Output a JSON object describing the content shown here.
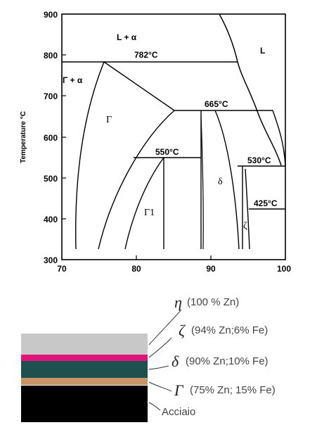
{
  "chart_data": {
    "type": "phase-diagram",
    "ylabel": "Temperature °C",
    "xlim": [
      70,
      100
    ],
    "ylim": [
      300,
      900
    ],
    "x_ticks": [
      "70",
      "80",
      "90",
      "100"
    ],
    "y_ticks": [
      "300",
      "400",
      "500",
      "600",
      "700",
      "800",
      "900"
    ],
    "regions": [
      {
        "id": "l-alpha",
        "label": "L + α"
      },
      {
        "id": "liquid",
        "label": "L"
      },
      {
        "id": "gamma-alpha",
        "label": "Γ + α"
      },
      {
        "id": "gamma",
        "label": "Γ"
      },
      {
        "id": "gamma1",
        "label": "Γ1"
      },
      {
        "id": "delta",
        "label": "δ"
      },
      {
        "id": "zeta",
        "label": "ζ"
      }
    ],
    "isotherms": [
      {
        "label": "782°C",
        "temp": 782
      },
      {
        "label": "665°C",
        "temp": 665
      },
      {
        "label": "550°C",
        "temp": 550
      },
      {
        "label": "530°C",
        "temp": 530
      },
      {
        "label": "425°C",
        "temp": 425
      }
    ]
  },
  "legend": {
    "items": [
      {
        "symbol": "η",
        "text": "(100 % Zn)",
        "color": "#c8c8c8"
      },
      {
        "symbol": "ζ",
        "text": "(94% Zn;6% Fe)",
        "color": "#e0147a"
      },
      {
        "symbol": "δ",
        "text": "(90% Zn;10% Fe)",
        "color": "#1e5050"
      },
      {
        "symbol": "Γ",
        "text": "(75% Zn; 15% Fe)",
        "color": "#c89664"
      }
    ],
    "steel_label": "Acciaio",
    "steel_color": "#000000"
  }
}
